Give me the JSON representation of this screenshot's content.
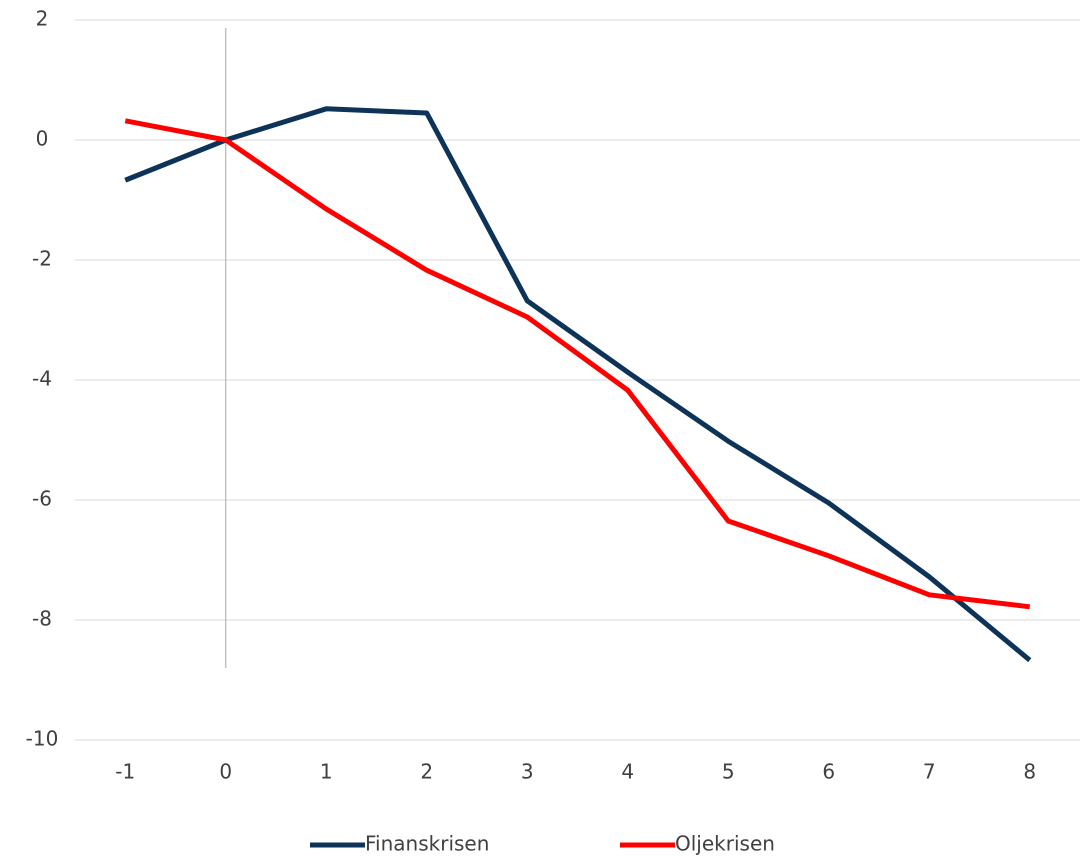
{
  "chart_data": {
    "type": "line",
    "categories": [
      "-1",
      "0",
      "1",
      "2",
      "3",
      "4",
      "5",
      "6",
      "7",
      "8"
    ],
    "series": [
      {
        "name": "Finanskrisen",
        "color": "#0d3359",
        "values": [
          -0.67,
          0,
          0.52,
          0.45,
          -2.68,
          -3.87,
          -5.02,
          -6.05,
          -7.28,
          -8.67
        ]
      },
      {
        "name": "Oljekrisen",
        "color": "#ff0000",
        "values": [
          0.32,
          0,
          -1.15,
          -2.17,
          -2.95,
          -4.17,
          -6.35,
          -6.93,
          -7.58,
          -7.78
        ]
      }
    ],
    "ylim": [
      -10,
      2
    ],
    "yticks": [
      -10,
      -8,
      -6,
      -4,
      -2,
      0,
      2
    ],
    "grid": true,
    "legend": "bottom"
  }
}
